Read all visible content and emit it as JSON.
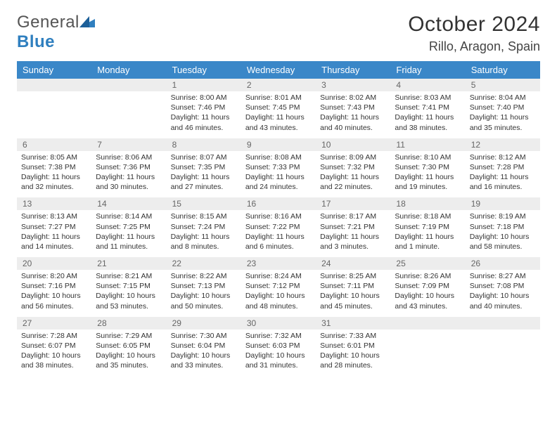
{
  "logo": {
    "word1": "General",
    "word2": "Blue"
  },
  "header": {
    "month_year": "October 2024",
    "location": "Rillo, Aragon, Spain"
  },
  "colors": {
    "header_bg": "#3a87c8",
    "header_text": "#ffffff",
    "daynum_bg": "#ededed",
    "daynum_text": "#666666",
    "cell_border": "#2e6da4",
    "logo_blue": "#2f7fbf"
  },
  "day_names": [
    "Sunday",
    "Monday",
    "Tuesday",
    "Wednesday",
    "Thursday",
    "Friday",
    "Saturday"
  ],
  "weeks": [
    [
      null,
      null,
      {
        "n": "1",
        "sr": "Sunrise: 8:00 AM",
        "ss": "Sunset: 7:46 PM",
        "dl": "Daylight: 11 hours and 46 minutes."
      },
      {
        "n": "2",
        "sr": "Sunrise: 8:01 AM",
        "ss": "Sunset: 7:45 PM",
        "dl": "Daylight: 11 hours and 43 minutes."
      },
      {
        "n": "3",
        "sr": "Sunrise: 8:02 AM",
        "ss": "Sunset: 7:43 PM",
        "dl": "Daylight: 11 hours and 40 minutes."
      },
      {
        "n": "4",
        "sr": "Sunrise: 8:03 AM",
        "ss": "Sunset: 7:41 PM",
        "dl": "Daylight: 11 hours and 38 minutes."
      },
      {
        "n": "5",
        "sr": "Sunrise: 8:04 AM",
        "ss": "Sunset: 7:40 PM",
        "dl": "Daylight: 11 hours and 35 minutes."
      }
    ],
    [
      {
        "n": "6",
        "sr": "Sunrise: 8:05 AM",
        "ss": "Sunset: 7:38 PM",
        "dl": "Daylight: 11 hours and 32 minutes."
      },
      {
        "n": "7",
        "sr": "Sunrise: 8:06 AM",
        "ss": "Sunset: 7:36 PM",
        "dl": "Daylight: 11 hours and 30 minutes."
      },
      {
        "n": "8",
        "sr": "Sunrise: 8:07 AM",
        "ss": "Sunset: 7:35 PM",
        "dl": "Daylight: 11 hours and 27 minutes."
      },
      {
        "n": "9",
        "sr": "Sunrise: 8:08 AM",
        "ss": "Sunset: 7:33 PM",
        "dl": "Daylight: 11 hours and 24 minutes."
      },
      {
        "n": "10",
        "sr": "Sunrise: 8:09 AM",
        "ss": "Sunset: 7:32 PM",
        "dl": "Daylight: 11 hours and 22 minutes."
      },
      {
        "n": "11",
        "sr": "Sunrise: 8:10 AM",
        "ss": "Sunset: 7:30 PM",
        "dl": "Daylight: 11 hours and 19 minutes."
      },
      {
        "n": "12",
        "sr": "Sunrise: 8:12 AM",
        "ss": "Sunset: 7:28 PM",
        "dl": "Daylight: 11 hours and 16 minutes."
      }
    ],
    [
      {
        "n": "13",
        "sr": "Sunrise: 8:13 AM",
        "ss": "Sunset: 7:27 PM",
        "dl": "Daylight: 11 hours and 14 minutes."
      },
      {
        "n": "14",
        "sr": "Sunrise: 8:14 AM",
        "ss": "Sunset: 7:25 PM",
        "dl": "Daylight: 11 hours and 11 minutes."
      },
      {
        "n": "15",
        "sr": "Sunrise: 8:15 AM",
        "ss": "Sunset: 7:24 PM",
        "dl": "Daylight: 11 hours and 8 minutes."
      },
      {
        "n": "16",
        "sr": "Sunrise: 8:16 AM",
        "ss": "Sunset: 7:22 PM",
        "dl": "Daylight: 11 hours and 6 minutes."
      },
      {
        "n": "17",
        "sr": "Sunrise: 8:17 AM",
        "ss": "Sunset: 7:21 PM",
        "dl": "Daylight: 11 hours and 3 minutes."
      },
      {
        "n": "18",
        "sr": "Sunrise: 8:18 AM",
        "ss": "Sunset: 7:19 PM",
        "dl": "Daylight: 11 hours and 1 minute."
      },
      {
        "n": "19",
        "sr": "Sunrise: 8:19 AM",
        "ss": "Sunset: 7:18 PM",
        "dl": "Daylight: 10 hours and 58 minutes."
      }
    ],
    [
      {
        "n": "20",
        "sr": "Sunrise: 8:20 AM",
        "ss": "Sunset: 7:16 PM",
        "dl": "Daylight: 10 hours and 56 minutes."
      },
      {
        "n": "21",
        "sr": "Sunrise: 8:21 AM",
        "ss": "Sunset: 7:15 PM",
        "dl": "Daylight: 10 hours and 53 minutes."
      },
      {
        "n": "22",
        "sr": "Sunrise: 8:22 AM",
        "ss": "Sunset: 7:13 PM",
        "dl": "Daylight: 10 hours and 50 minutes."
      },
      {
        "n": "23",
        "sr": "Sunrise: 8:24 AM",
        "ss": "Sunset: 7:12 PM",
        "dl": "Daylight: 10 hours and 48 minutes."
      },
      {
        "n": "24",
        "sr": "Sunrise: 8:25 AM",
        "ss": "Sunset: 7:11 PM",
        "dl": "Daylight: 10 hours and 45 minutes."
      },
      {
        "n": "25",
        "sr": "Sunrise: 8:26 AM",
        "ss": "Sunset: 7:09 PM",
        "dl": "Daylight: 10 hours and 43 minutes."
      },
      {
        "n": "26",
        "sr": "Sunrise: 8:27 AM",
        "ss": "Sunset: 7:08 PM",
        "dl": "Daylight: 10 hours and 40 minutes."
      }
    ],
    [
      {
        "n": "27",
        "sr": "Sunrise: 7:28 AM",
        "ss": "Sunset: 6:07 PM",
        "dl": "Daylight: 10 hours and 38 minutes."
      },
      {
        "n": "28",
        "sr": "Sunrise: 7:29 AM",
        "ss": "Sunset: 6:05 PM",
        "dl": "Daylight: 10 hours and 35 minutes."
      },
      {
        "n": "29",
        "sr": "Sunrise: 7:30 AM",
        "ss": "Sunset: 6:04 PM",
        "dl": "Daylight: 10 hours and 33 minutes."
      },
      {
        "n": "30",
        "sr": "Sunrise: 7:32 AM",
        "ss": "Sunset: 6:03 PM",
        "dl": "Daylight: 10 hours and 31 minutes."
      },
      {
        "n": "31",
        "sr": "Sunrise: 7:33 AM",
        "ss": "Sunset: 6:01 PM",
        "dl": "Daylight: 10 hours and 28 minutes."
      },
      null,
      null
    ]
  ]
}
